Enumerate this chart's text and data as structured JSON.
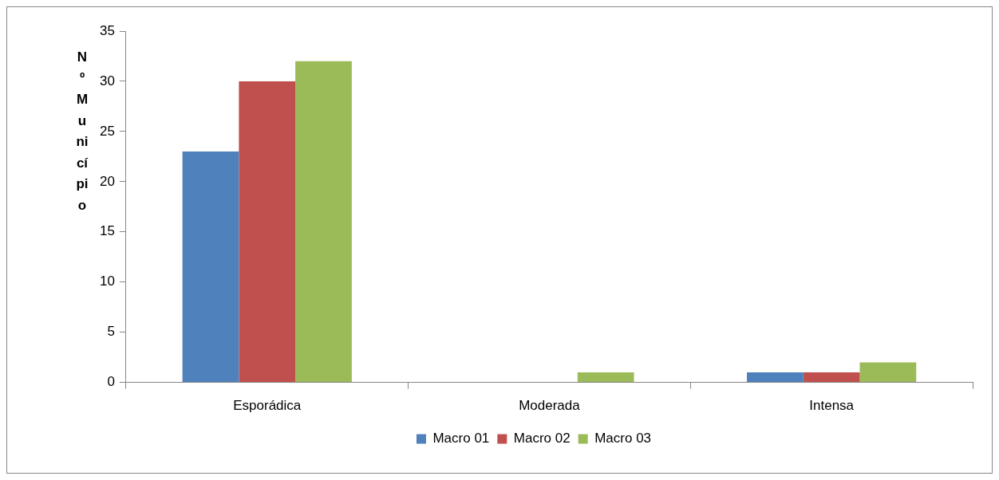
{
  "chart_data": {
    "type": "bar",
    "ylabel": "Nº Município",
    "categories": [
      "Esporádica",
      "Moderada",
      "Intensa"
    ],
    "series": [
      {
        "name": "Macro 01",
        "color": "#4f81bd",
        "values": [
          23,
          0,
          1
        ]
      },
      {
        "name": "Macro 02",
        "color": "#c0504d",
        "values": [
          30,
          0,
          1
        ]
      },
      {
        "name": "Macro 03",
        "color": "#9bbb59",
        "values": [
          32,
          1,
          2
        ]
      }
    ],
    "ylim": [
      0,
      35
    ],
    "yticks": [
      0,
      5,
      10,
      15,
      20,
      25,
      30,
      35
    ],
    "grid": false,
    "legend": "bottom"
  }
}
